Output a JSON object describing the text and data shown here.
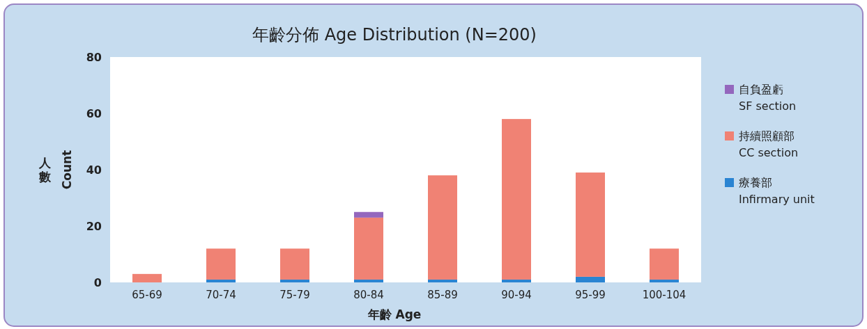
{
  "chart_data": {
    "type": "bar",
    "title": "年齡分佈 Age Distribution (N=200)",
    "xlabel": "年齡 Age",
    "ylabel": "人數 Count",
    "categories": [
      "65-69",
      "70-74",
      "75-79",
      "80-84",
      "85-89",
      "90-94",
      "95-99",
      "100-104"
    ],
    "stacked": true,
    "ylim": [
      0,
      80
    ],
    "yticks": [
      0,
      20,
      40,
      60,
      80
    ],
    "grid": false,
    "legend": "right",
    "series": [
      {
        "name": "療養部\nInfirmary unit",
        "color": "#2a84d2",
        "values": [
          0,
          1,
          1,
          1,
          1,
          1,
          2,
          1
        ]
      },
      {
        "name": "持續照顧部\nCC section",
        "color": "#f08274",
        "values": [
          3,
          11,
          11,
          22,
          37,
          57,
          37,
          11
        ]
      },
      {
        "name": "自負盈虧\nSF section",
        "color": "#9467bd",
        "values": [
          0,
          0,
          0,
          2,
          0,
          0,
          0,
          0
        ]
      }
    ]
  }
}
